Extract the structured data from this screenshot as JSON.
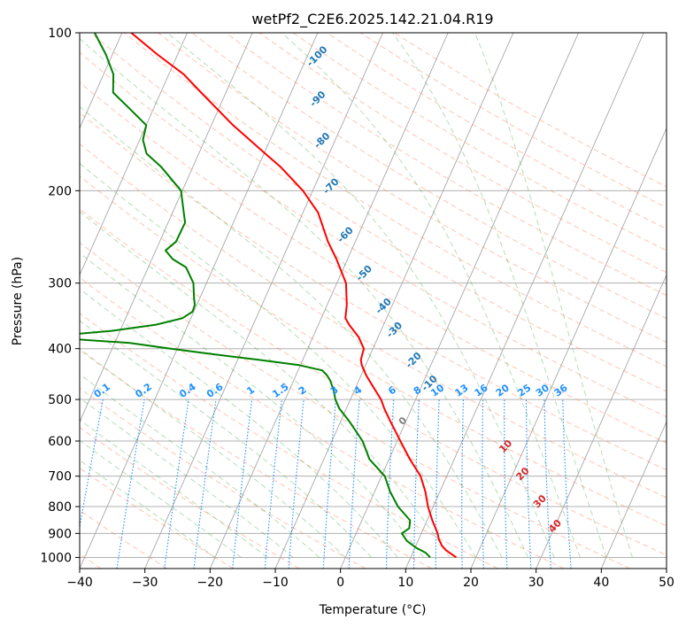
{
  "chart_data": {
    "type": "line",
    "title": "wetPf2_C2E6.2025.142.21.04.R19",
    "xlabel": "Temperature (°C)",
    "ylabel": "Pressure (hPa)",
    "xlim": [
      -40,
      50
    ],
    "ylim": [
      1050,
      100
    ],
    "y_scale": "log",
    "x_ticks": [
      -40,
      -30,
      -20,
      -10,
      0,
      10,
      20,
      30,
      40,
      50
    ],
    "y_ticks": [
      1000,
      900,
      800,
      700,
      600,
      500,
      400,
      300,
      200,
      100
    ],
    "grid": true,
    "skew_t": true,
    "colors": {
      "temperature": "#ff0000",
      "dewpoint": "#008000",
      "dry_adiabats": "#ff7f50",
      "moist_adiabats": "#2ca02c",
      "mixing_ratio": "#1e90ff",
      "isotherm": "#808080"
    },
    "series": [
      {
        "color": "#ff0000",
        "p": [
          1000,
          970,
          950,
          920,
          900,
          870,
          850,
          800,
          750,
          700,
          650,
          600,
          550,
          520,
          500,
          470,
          450,
          430,
          420,
          400,
          380,
          360,
          350,
          330,
          300,
          270,
          250,
          220,
          200,
          180,
          170,
          150,
          130,
          120,
          110,
          100
        ],
        "t": [
          17.0,
          15.0,
          14.0,
          13.0,
          12.5,
          11.5,
          10.8,
          9.2,
          7.8,
          6.0,
          3.2,
          0.5,
          -2.4,
          -4.2,
          -5.3,
          -7.6,
          -9.2,
          -10.6,
          -11.1,
          -11.4,
          -13.0,
          -15.3,
          -16.3,
          -17.0,
          -18.6,
          -21.7,
          -24.2,
          -27.7,
          -31.5,
          -36.6,
          -39.8,
          -46.7,
          -53.8,
          -57.7,
          -63.1,
          -68.6
        ]
      },
      {
        "color": "#008000",
        "p": [
          1000,
          980,
          960,
          930,
          900,
          880,
          850,
          800,
          750,
          700,
          650,
          600,
          550,
          520,
          500,
          480,
          460,
          450,
          440,
          430,
          420,
          410,
          400,
          390,
          385,
          382,
          380,
          375,
          370,
          360,
          350,
          340,
          330,
          320,
          300,
          280,
          270,
          260,
          250,
          230,
          220,
          200,
          180,
          170,
          160,
          150,
          140,
          130,
          120,
          110,
          100
        ],
        "td": [
          13.0,
          12.0,
          10.3,
          8.3,
          7.0,
          7.8,
          7.4,
          4.6,
          2.4,
          0.5,
          -3.0,
          -5.3,
          -8.7,
          -11.1,
          -12.3,
          -13.2,
          -14.4,
          -15.2,
          -16.3,
          -20.2,
          -26.8,
          -34.1,
          -41.0,
          -47.7,
          -54.7,
          -58.1,
          -60.4,
          -56.6,
          -51.3,
          -44.9,
          -41.3,
          -40.2,
          -40.3,
          -40.9,
          -42.0,
          -44.2,
          -46.8,
          -48.5,
          -47.5,
          -47.4,
          -48.3,
          -50.2,
          -54.9,
          -58.0,
          -59.5,
          -60.0,
          -63.5,
          -67.3,
          -68.5,
          -71.0,
          -74.2
        ]
      }
    ],
    "annotations": {
      "dry_adiabats": [
        "-100",
        "-90",
        "-80",
        "-70",
        "-60",
        "-50",
        "-40",
        "-30",
        "-20",
        "-10"
      ],
      "mixing_ratios": [
        "0.1",
        "0.2",
        "0.4",
        "0.6",
        "1",
        "1.5",
        "2",
        "3",
        "4",
        "6",
        "8",
        "10",
        "13",
        "16",
        "20",
        "25",
        "30",
        "36"
      ],
      "moist_adiabats": [
        "10",
        "20",
        "30",
        "40"
      ],
      "isotherm_zero": "0"
    }
  }
}
